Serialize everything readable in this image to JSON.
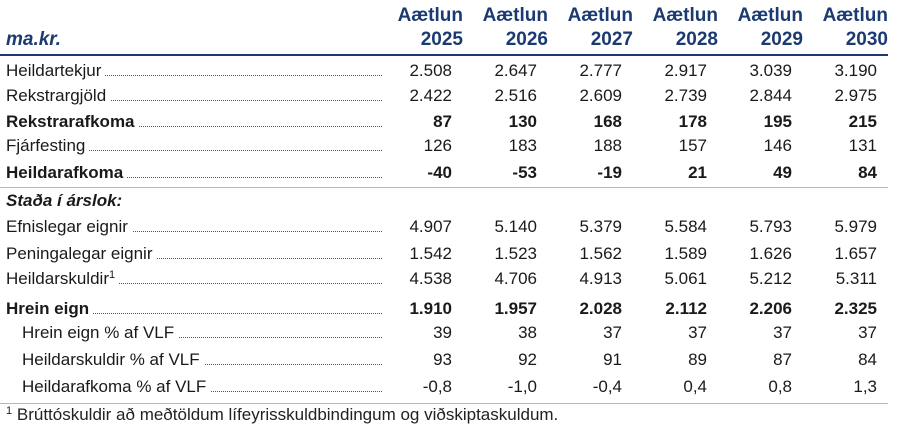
{
  "header": {
    "unit": "ma.kr.",
    "columns": [
      {
        "label": "Aætlun",
        "year": "2025"
      },
      {
        "label": "Aætlun",
        "year": "2026"
      },
      {
        "label": "Aætlun",
        "year": "2027"
      },
      {
        "label": "Aætlun",
        "year": "2028"
      },
      {
        "label": "Aætlun",
        "year": "2029"
      },
      {
        "label": "Aætlun",
        "year": "2030"
      }
    ]
  },
  "rows": [
    {
      "label": "Heildartekjur",
      "values": [
        "2.508",
        "2.647",
        "2.777",
        "2.917",
        "3.039",
        "3.190"
      ]
    },
    {
      "label": "Rekstrargjöld",
      "values": [
        "2.422",
        "2.516",
        "2.609",
        "2.739",
        "2.844",
        "2.975"
      ]
    },
    {
      "label": "Rekstrarafkoma",
      "values": [
        "87",
        "130",
        "168",
        "178",
        "195",
        "215"
      ]
    },
    {
      "label": "Fjárfesting",
      "values": [
        "126",
        "183",
        "188",
        "157",
        "146",
        "131"
      ]
    },
    {
      "label": "Heildarafkoma",
      "values": [
        "-40",
        "-53",
        "-19",
        "21",
        "49",
        "84"
      ]
    },
    {
      "label": "Staða í árslok:",
      "values": []
    },
    {
      "label": "Efnislegar eignir",
      "values": [
        "4.907",
        "5.140",
        "5.379",
        "5.584",
        "5.793",
        "5.979"
      ]
    },
    {
      "label": "Peningalegar eignir",
      "values": [
        "1.542",
        "1.523",
        "1.562",
        "1.589",
        "1.626",
        "1.657"
      ]
    },
    {
      "label": "Heildarskuldir",
      "sup": "1",
      "values": [
        "4.538",
        "4.706",
        "4.913",
        "5.061",
        "5.212",
        "5.311"
      ]
    },
    {
      "label": "Hrein eign",
      "values": [
        "1.910",
        "1.957",
        "2.028",
        "2.112",
        "2.206",
        "2.325"
      ]
    },
    {
      "label": "Hrein eign % af VLF",
      "values": [
        "39",
        "38",
        "37",
        "37",
        "37",
        "37"
      ]
    },
    {
      "label": "Heildarskuldir % af VLF",
      "values": [
        "93",
        "92",
        "91",
        "89",
        "87",
        "84"
      ]
    },
    {
      "label": "Heildarafkoma % af VLF",
      "values": [
        "-0,8",
        "-1,0",
        "-0,4",
        "0,4",
        "0,8",
        "1,3"
      ]
    }
  ],
  "footnote": {
    "sup": "1",
    "text": "Brúttóskuldir að meðtöldum lífeyrisskuldbindingum og viðskiptaskuldum."
  },
  "colors": {
    "header_text": "#1c3a72",
    "rule": "#1c3a72",
    "divider": "#b8b8b8"
  }
}
